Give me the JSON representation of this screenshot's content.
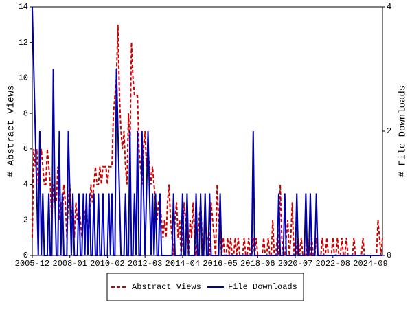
{
  "chart_data": {
    "type": "line",
    "y_label": "# Abstract Views",
    "y2_label": "# File Downloads",
    "x": [
      "2005-12",
      "2006-01",
      "2006-02",
      "2006-03",
      "2006-04",
      "2006-05",
      "2006-06",
      "2006-07",
      "2006-08",
      "2006-09",
      "2006-10",
      "2006-11",
      "2006-12",
      "2007-01",
      "2007-02",
      "2007-03",
      "2007-04",
      "2007-05",
      "2007-06",
      "2007-07",
      "2007-08",
      "2007-09",
      "2007-10",
      "2007-11",
      "2007-12",
      "2008-01",
      "2008-02",
      "2008-03",
      "2008-04",
      "2008-05",
      "2008-06",
      "2008-07",
      "2008-08",
      "2008-09",
      "2008-10",
      "2008-11",
      "2008-12",
      "2009-01",
      "2009-02",
      "2009-03",
      "2009-04",
      "2009-05",
      "2009-06",
      "2009-07",
      "2009-08",
      "2009-09",
      "2009-10",
      "2009-11",
      "2009-12",
      "2010-01",
      "2010-02",
      "2010-03",
      "2010-04",
      "2010-05",
      "2010-06",
      "2010-07",
      "2010-08",
      "2010-09",
      "2010-10",
      "2010-11",
      "2010-12",
      "2011-01",
      "2011-02",
      "2011-03",
      "2011-04",
      "2011-05",
      "2011-06",
      "2011-07",
      "2011-08",
      "2011-09",
      "2011-10",
      "2011-11",
      "2011-12",
      "2012-01",
      "2012-02",
      "2012-03",
      "2012-04",
      "2012-05",
      "2012-06",
      "2012-07",
      "2012-08",
      "2012-09",
      "2012-10",
      "2012-11",
      "2012-12",
      "2013-01",
      "2013-02",
      "2013-03",
      "2013-04",
      "2013-05",
      "2013-06",
      "2013-07",
      "2013-08",
      "2013-09",
      "2013-10",
      "2013-11",
      "2013-12",
      "2014-01",
      "2014-02",
      "2014-03",
      "2014-04",
      "2014-05",
      "2014-06",
      "2014-07",
      "2014-08",
      "2014-09",
      "2014-10",
      "2014-11",
      "2014-12",
      "2015-01",
      "2015-02",
      "2015-03",
      "2015-04",
      "2015-05",
      "2015-06",
      "2015-07",
      "2015-08",
      "2015-09",
      "2015-10",
      "2015-11",
      "2015-12",
      "2016-01",
      "2016-02",
      "2016-03",
      "2016-04",
      "2016-05",
      "2016-06",
      "2016-07",
      "2016-08",
      "2016-09",
      "2016-10",
      "2016-11",
      "2016-12",
      "2017-01",
      "2017-02",
      "2017-03",
      "2017-04",
      "2017-05",
      "2017-06",
      "2017-07",
      "2017-08",
      "2017-09",
      "2017-10",
      "2017-11",
      "2017-12",
      "2018-01",
      "2018-02",
      "2018-03",
      "2018-04",
      "2018-05",
      "2018-06",
      "2018-07",
      "2018-08",
      "2018-09",
      "2018-10",
      "2018-11",
      "2018-12",
      "2019-01",
      "2019-02",
      "2019-03",
      "2019-04",
      "2019-05",
      "2019-06",
      "2019-07",
      "2019-08",
      "2019-09",
      "2019-10",
      "2019-11",
      "2019-12",
      "2020-01",
      "2020-02",
      "2020-03",
      "2020-04",
      "2020-05",
      "2020-06",
      "2020-07",
      "2020-08",
      "2020-09",
      "2020-10",
      "2020-11",
      "2020-12",
      "2021-01",
      "2021-02",
      "2021-03",
      "2021-04",
      "2021-05",
      "2021-06",
      "2021-07",
      "2021-08",
      "2021-09",
      "2021-10",
      "2021-11",
      "2021-12",
      "2022-01",
      "2022-02",
      "2022-03",
      "2022-04",
      "2022-05",
      "2022-06",
      "2022-07",
      "2022-08",
      "2022-09",
      "2022-10",
      "2022-11",
      "2022-12",
      "2023-01",
      "2023-02",
      "2023-03",
      "2023-04",
      "2023-05",
      "2023-06",
      "2023-07",
      "2023-08",
      "2023-09",
      "2023-10",
      "2023-11",
      "2023-12",
      "2024-01",
      "2024-02",
      "2024-03",
      "2024-04",
      "2024-05",
      "2024-06",
      "2024-07",
      "2024-08",
      "2024-09",
      "2024-10",
      "2024-11",
      "2024-12",
      "2025-01",
      "2025-02",
      "2025-03",
      "2025-04",
      "2025-05"
    ],
    "xticks": [
      "2005-12",
      "2008-01",
      "2010-02",
      "2012-03",
      "2014-04",
      "2016-05",
      "2018-06",
      "2020-07",
      "2022-08",
      "2024-09"
    ],
    "ylim": [
      0,
      14
    ],
    "yticks": [
      0,
      2,
      4,
      6,
      8,
      10,
      12,
      14
    ],
    "y2lim": [
      0,
      4
    ],
    "y2ticks": [
      0,
      2,
      4
    ],
    "legend": "bottom",
    "series": [
      {
        "name": "Abstract Views",
        "color": "#cc0000",
        "dash": true,
        "values": [
          1,
          6,
          5,
          6,
          4,
          5,
          6,
          5,
          4,
          4,
          6,
          5,
          4,
          2,
          4,
          3,
          3,
          5,
          2,
          3,
          2,
          4,
          3,
          1,
          3,
          4,
          2,
          3,
          1,
          3,
          2,
          3,
          2,
          1,
          3,
          2,
          3,
          1,
          2,
          4,
          3,
          4,
          5,
          4,
          4,
          5,
          4,
          5,
          5,
          5,
          4,
          5,
          5,
          5,
          8,
          9,
          10,
          13,
          9,
          7,
          6,
          7,
          5,
          4,
          8,
          6,
          12,
          10,
          9,
          9,
          9,
          6,
          5,
          4,
          6,
          7,
          5,
          6,
          5,
          4,
          5,
          4,
          3,
          2,
          3,
          3,
          2,
          1,
          2,
          1,
          3,
          4,
          2,
          1,
          0,
          2,
          3,
          1,
          2,
          0,
          1,
          3,
          2,
          1,
          0,
          2,
          1,
          3,
          1,
          0,
          1,
          2,
          3,
          1,
          0,
          2,
          1,
          1,
          0,
          3,
          2,
          1,
          0,
          4,
          2,
          1,
          0,
          1,
          0,
          0,
          1,
          0,
          1,
          0,
          0,
          1,
          0,
          1,
          0,
          0,
          0,
          1,
          0,
          0,
          1,
          0,
          0,
          1,
          0,
          1,
          0,
          0,
          0,
          0,
          1,
          0,
          0,
          1,
          0,
          0,
          2,
          0,
          0,
          1,
          0,
          4,
          1,
          0,
          0,
          1,
          2,
          0,
          1,
          3,
          0,
          1,
          0,
          1,
          0,
          1,
          0,
          0,
          0,
          1,
          0,
          0,
          1,
          0,
          0,
          1,
          0,
          0,
          0,
          1,
          0,
          0,
          1,
          0,
          0,
          0,
          1,
          0,
          0,
          1,
          0,
          0,
          1,
          0,
          0,
          1,
          0,
          0,
          0,
          0,
          1,
          0,
          0,
          0,
          0,
          0,
          1,
          0,
          0,
          0,
          0,
          0,
          0,
          0,
          0,
          0,
          2,
          1,
          0,
          1
        ]
      },
      {
        "name": "File Downloads",
        "color": "#0000aa",
        "axis": "y2",
        "values": [
          4,
          3,
          2,
          1,
          0,
          2,
          0,
          1,
          0,
          0,
          0,
          1,
          0,
          0,
          3,
          1,
          0,
          0,
          2,
          0,
          1,
          0,
          0,
          0,
          2,
          1,
          0,
          1,
          0,
          0,
          0,
          1,
          0,
          0,
          1,
          0,
          1,
          0,
          1,
          0,
          0,
          1,
          0,
          0,
          1,
          0,
          0,
          1,
          0,
          0,
          0,
          1,
          0,
          1,
          0,
          0,
          3,
          2,
          1,
          0,
          0,
          0,
          1,
          0,
          0,
          2,
          0,
          0,
          1,
          0,
          2,
          0,
          0,
          2,
          1,
          0,
          1,
          2,
          1,
          0,
          1,
          0,
          1,
          0,
          0,
          1,
          0,
          0,
          0,
          0,
          0,
          0,
          0,
          0,
          1,
          0,
          0,
          0,
          0,
          0,
          1,
          0,
          0,
          1,
          0,
          0,
          0,
          0,
          0,
          1,
          0,
          0,
          1,
          0,
          0,
          1,
          0,
          0,
          1,
          0,
          0,
          0,
          0,
          0,
          0,
          1,
          0,
          0,
          0,
          0,
          0,
          0,
          0,
          0,
          0,
          0,
          0,
          0,
          0,
          0,
          0,
          0,
          0,
          0,
          0,
          0,
          0,
          2,
          0,
          0,
          0,
          0,
          0,
          0,
          0,
          0,
          0,
          0,
          0,
          0,
          0,
          0,
          0,
          0,
          1,
          0,
          0,
          0,
          1,
          0,
          0,
          0,
          0,
          0,
          0,
          0,
          1,
          0,
          0,
          0,
          0,
          0,
          1,
          0,
          0,
          1,
          0,
          0,
          0,
          1,
          0,
          0,
          0,
          0,
          0,
          0,
          0,
          0,
          0,
          0,
          0,
          0,
          0,
          0,
          0,
          0,
          0,
          0,
          0,
          0,
          0,
          0,
          0,
          0,
          0,
          0,
          0,
          0,
          0,
          0,
          0,
          0,
          0,
          0,
          0,
          0,
          0,
          0,
          0,
          0,
          0,
          0,
          0,
          0
        ]
      }
    ]
  }
}
